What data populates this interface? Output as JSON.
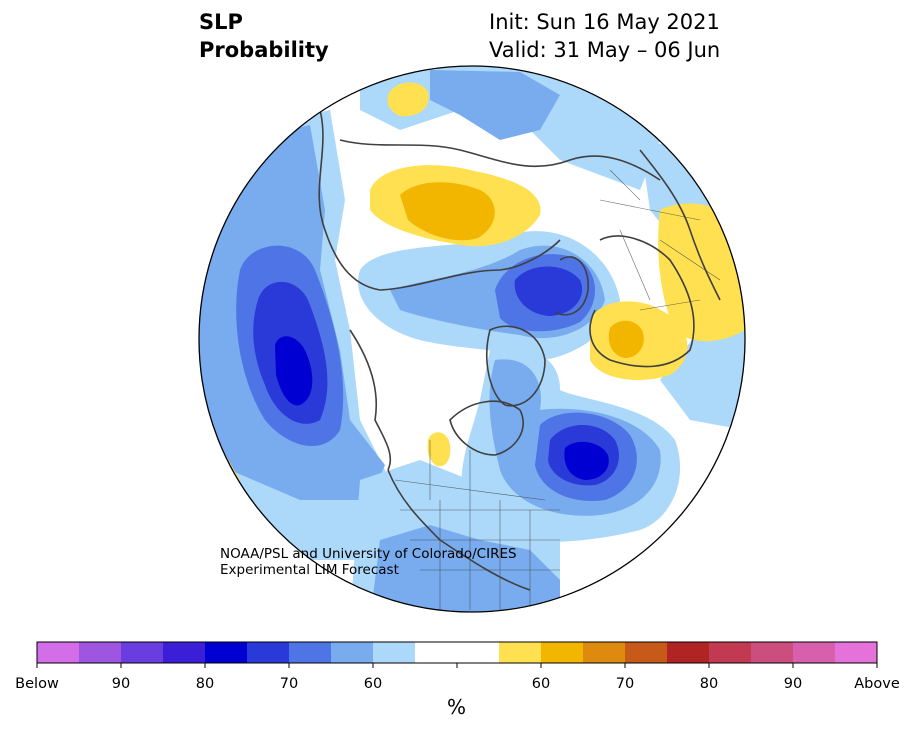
{
  "title": {
    "variable": "SLP",
    "product": "Probability",
    "init": "Init: Sun 16 May 2021",
    "valid": "Valid: 31 May – 06 Jun"
  },
  "credit": {
    "line1": "NOAA/PSL and University of Colorado/CIRES",
    "line2": "Experimental LIM Forecast"
  },
  "colorbar": {
    "unit": "%",
    "colors": [
      "#d46ee8",
      "#9e55e0",
      "#6a3de0",
      "#3a1fd6",
      "#0000d2",
      "#2a3ad8",
      "#4f74e6",
      "#78acee",
      "#acd8fa",
      "#ffffff",
      "#ffffff",
      "#ffe050",
      "#f2b600",
      "#dd8a0e",
      "#c75a18",
      "#b02424",
      "#c23a52",
      "#cc4e7e",
      "#d85fae",
      "#e472d8"
    ],
    "tick_labels": [
      "Below",
      "90",
      "80",
      "70",
      "60",
      "60",
      "70",
      "80",
      "90",
      "Above"
    ]
  },
  "map": {
    "projection": "north-polar-stereographic",
    "boundary": "circle",
    "land_outline_color": "#404040",
    "categories": [
      "below-normal (blue)",
      "normal (white)",
      "above-normal (yellow)"
    ]
  }
}
